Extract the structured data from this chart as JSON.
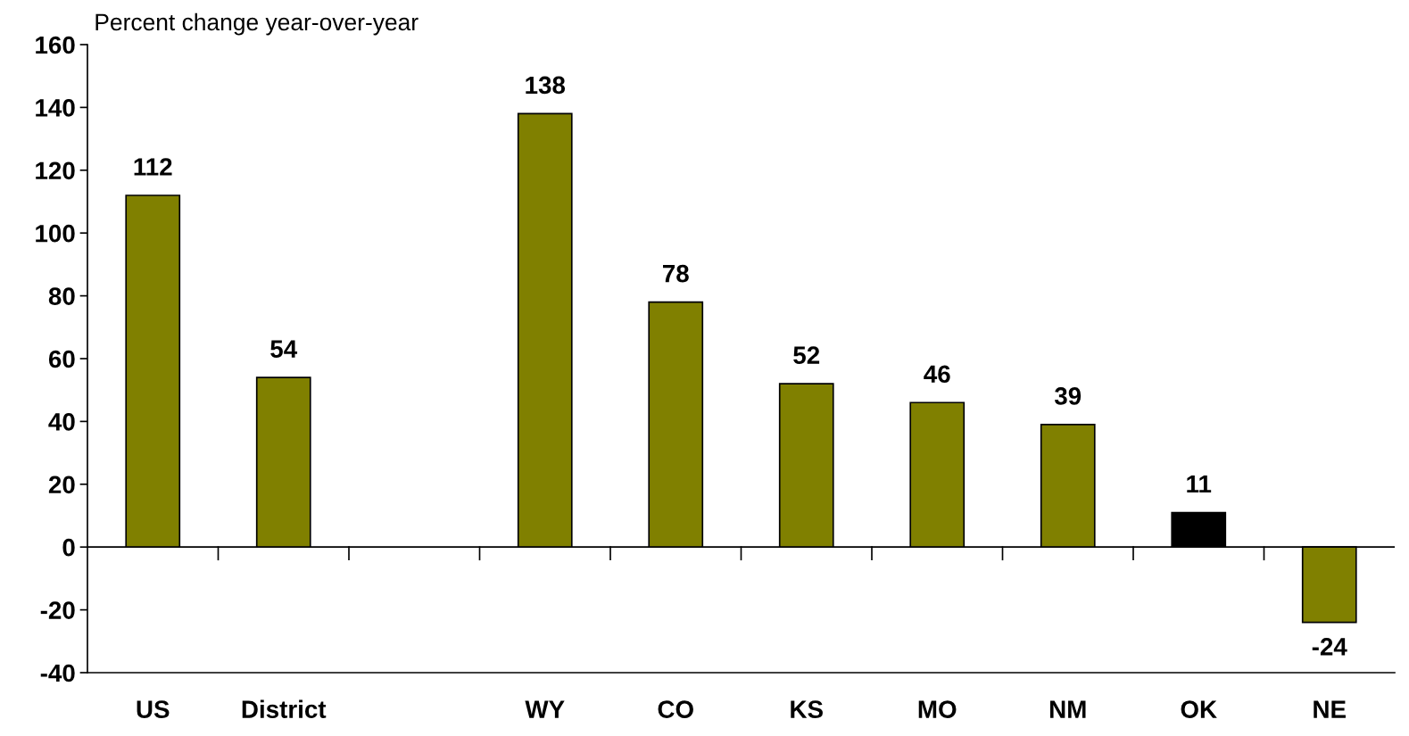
{
  "chart_data": {
    "type": "bar",
    "ylabel": "Percent change year-over-year",
    "categories": [
      "US",
      "District",
      null,
      "WY",
      "CO",
      "KS",
      "MO",
      "NM",
      "OK",
      "NE"
    ],
    "values": [
      112,
      54,
      null,
      138,
      78,
      52,
      46,
      39,
      11,
      -24
    ],
    "colors": [
      "#808000",
      "#808000",
      "#808000",
      "#808000",
      "#808000",
      "#808000",
      "#808000",
      "#808000",
      "#000000",
      "#808000"
    ],
    "ylim": [
      -40,
      160
    ],
    "yticks": [
      -40,
      -20,
      0,
      20,
      40,
      60,
      80,
      100,
      120,
      140,
      160
    ],
    "data_labels": true,
    "grid": false,
    "ref_lines": [
      {
        "axis": "y",
        "value": 0,
        "color": "#000000"
      }
    ]
  }
}
